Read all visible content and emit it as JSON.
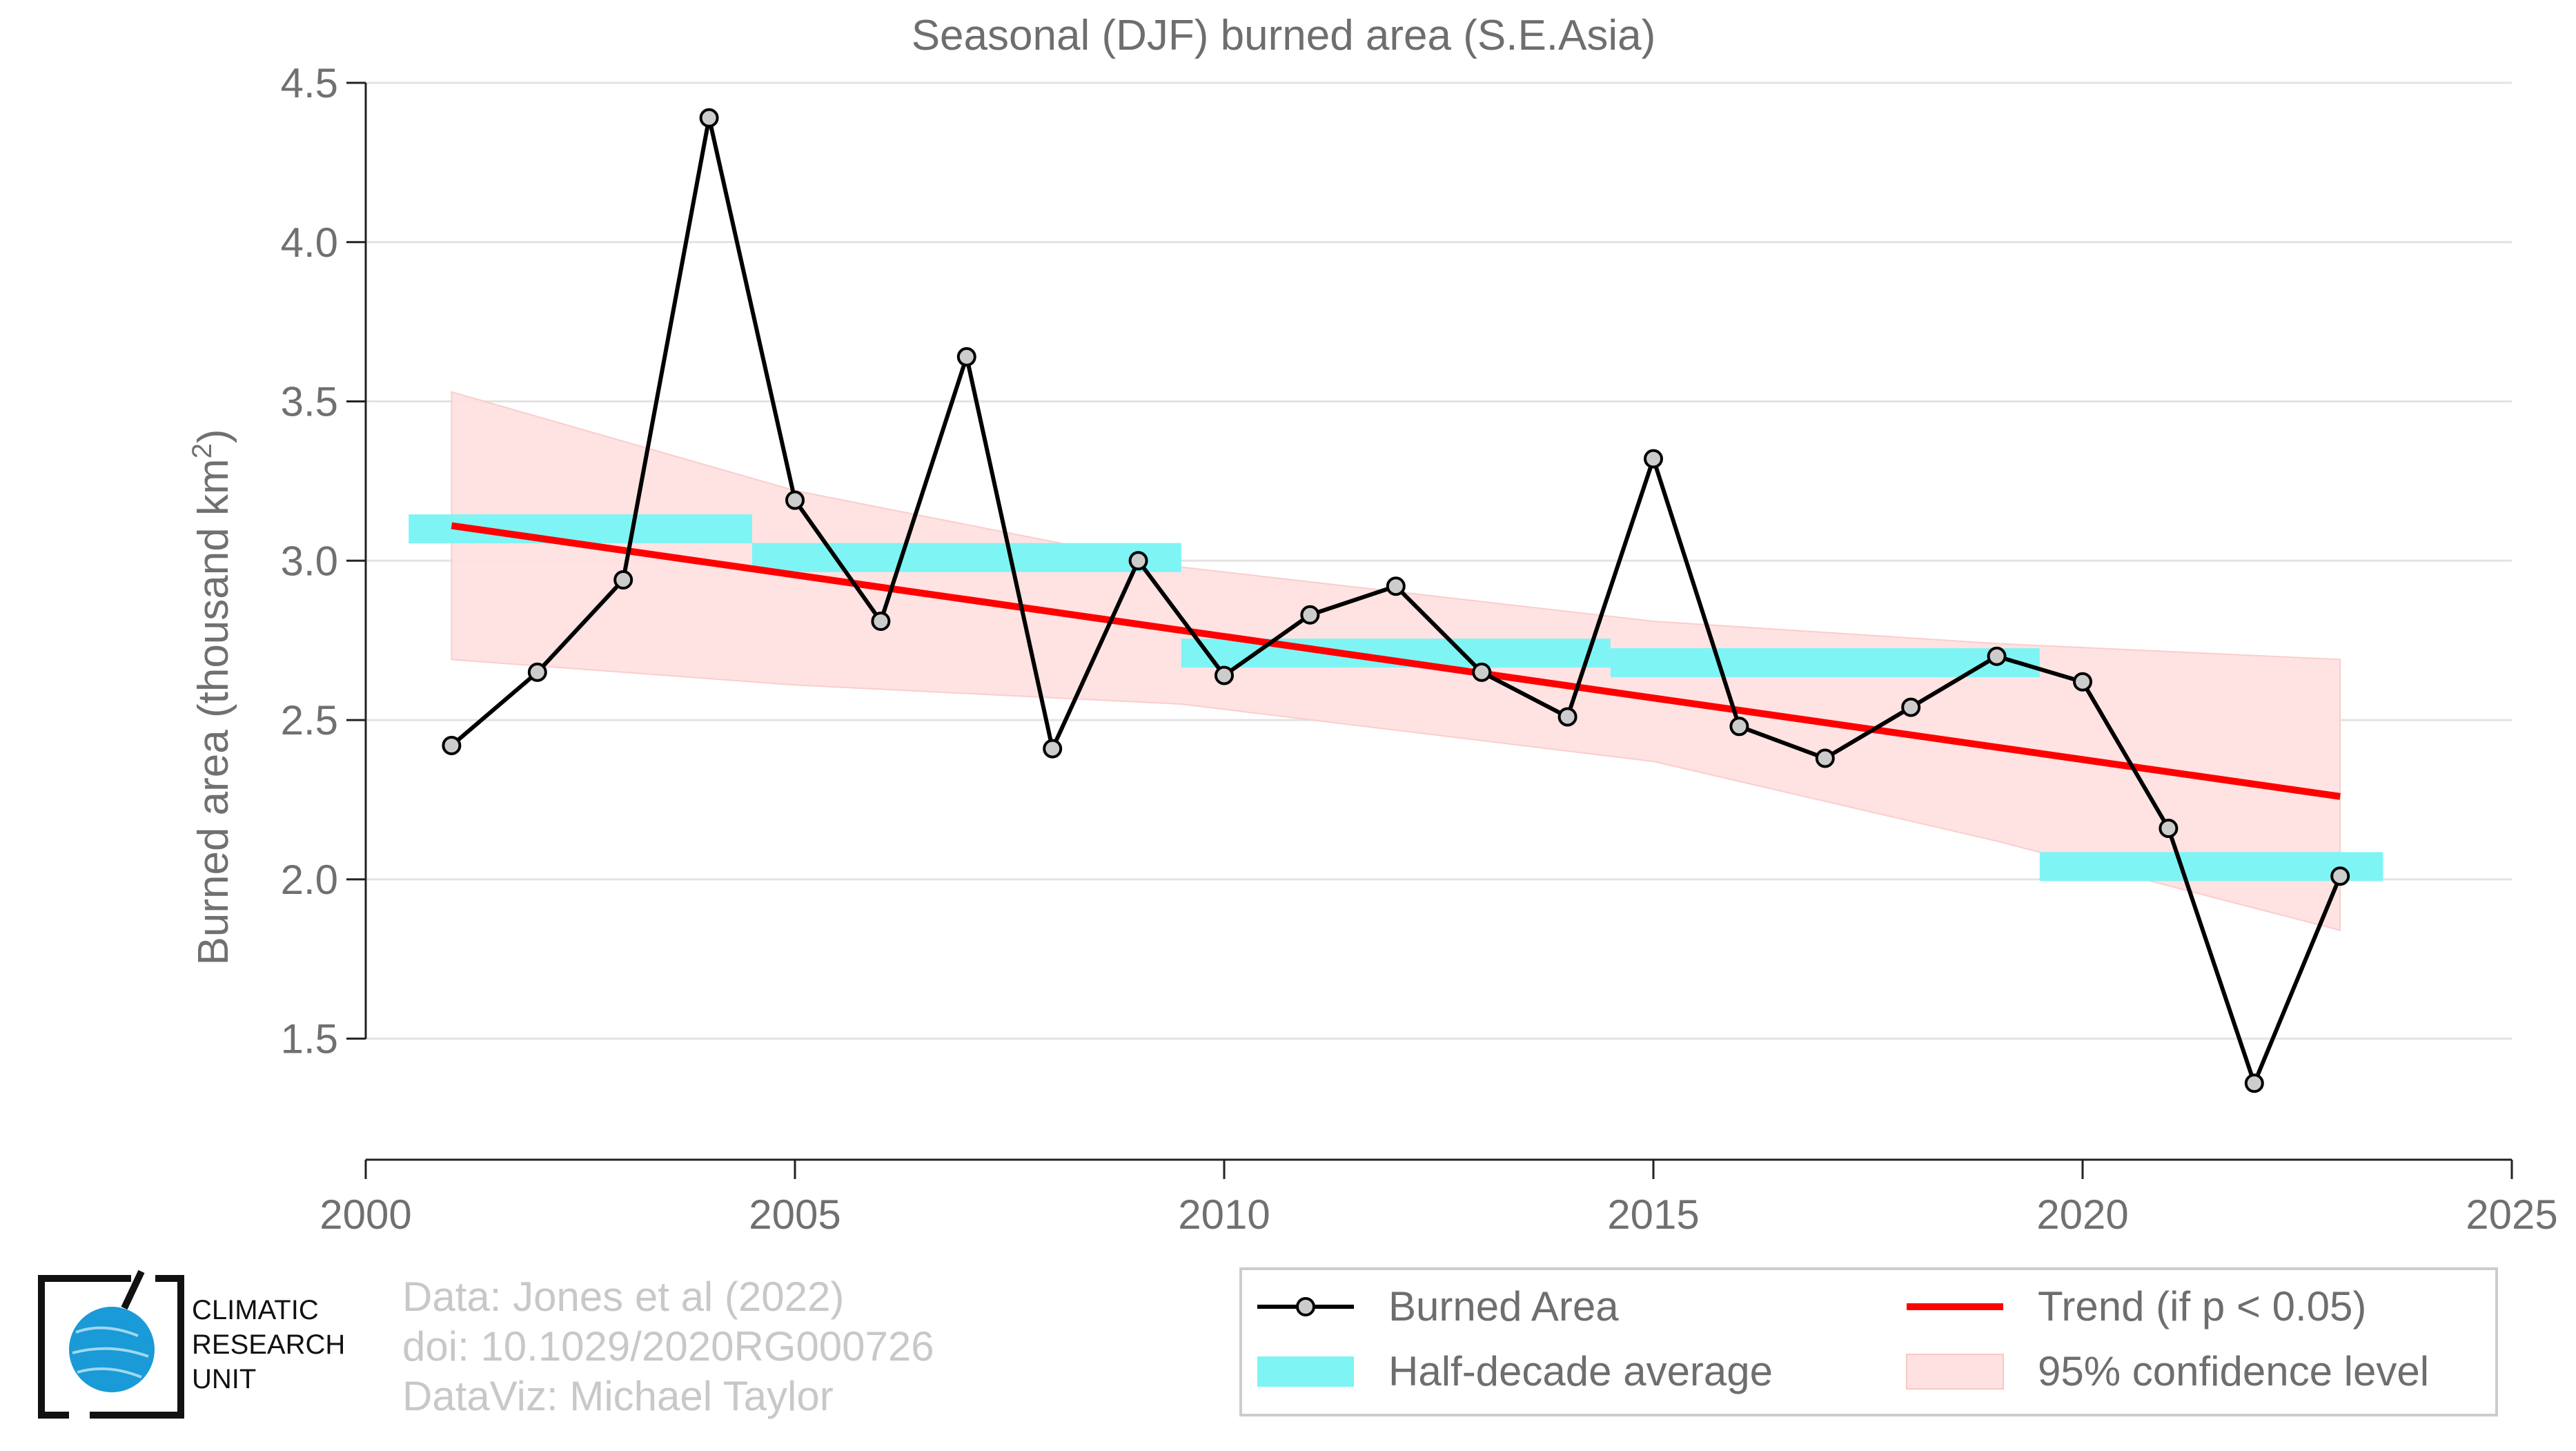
{
  "chart_data": {
    "type": "line",
    "title": "Seasonal (DJF) burned area (S.E.Asia)",
    "xlabel": "",
    "ylabel": "Burned area (thousand km",
    "ylabel_sup": "2",
    "ylabel_end": ")",
    "xlim": [
      2000,
      2025
    ],
    "ylim": [
      1.12,
      4.5
    ],
    "x_ticks": [
      2000,
      2005,
      2010,
      2015,
      2020,
      2025
    ],
    "y_ticks": [
      1.5,
      2.0,
      2.5,
      3.0,
      3.5,
      4.0,
      4.5
    ],
    "y_tick_labels": [
      "1.5",
      "2.0",
      "2.5",
      "3.0",
      "3.5",
      "4.0",
      "4.5"
    ],
    "grid": "horizontal",
    "series": [
      {
        "name": "Burned Area",
        "x": [
          2001,
          2002,
          2003,
          2004,
          2005,
          2006,
          2007,
          2008,
          2009,
          2010,
          2011,
          2012,
          2013,
          2014,
          2015,
          2016,
          2017,
          2018,
          2019,
          2020,
          2021,
          2022,
          2023
        ],
        "values": [
          2.42,
          2.65,
          2.94,
          4.39,
          3.19,
          2.81,
          3.64,
          2.41,
          3.0,
          2.64,
          2.83,
          2.92,
          2.65,
          2.51,
          3.32,
          2.48,
          2.38,
          2.54,
          2.7,
          2.62,
          2.16,
          1.36,
          2.01
        ],
        "color": "#000000",
        "marker_fill": "#cccccc"
      },
      {
        "name": "Half-decade average",
        "color": "#7ff4f4",
        "segments": [
          {
            "x0": 2000.5,
            "x1": 2004.5,
            "value": 3.1
          },
          {
            "x0": 2004.5,
            "x1": 2009.5,
            "value": 3.01
          },
          {
            "x0": 2009.5,
            "x1": 2014.5,
            "value": 2.71
          },
          {
            "x0": 2014.5,
            "x1": 2019.5,
            "value": 2.68
          },
          {
            "x0": 2019.5,
            "x1": 2023.5,
            "value": 2.04
          }
        ]
      },
      {
        "name": "Trend (if p < 0.05)",
        "color": "#ff0000",
        "x": [
          2001,
          2023
        ],
        "values": [
          3.11,
          2.26
        ]
      },
      {
        "name": "95% confidence level",
        "color": "#ffe1e1",
        "x": [
          2001,
          2005,
          2009.5,
          2015,
          2019,
          2023
        ],
        "upper": [
          3.53,
          3.22,
          2.98,
          2.81,
          2.74,
          2.69
        ],
        "lower": [
          2.69,
          2.61,
          2.55,
          2.37,
          2.12,
          1.84
        ]
      }
    ],
    "legend": {
      "placement": "bottom-right",
      "entries": [
        "Burned Area",
        "Trend (if p < 0.05)",
        "Half-decade average",
        "95% confidence level"
      ]
    }
  },
  "credits": {
    "line1": "Data: Jones et al (2022)",
    "line2": "doi: 10.1029/2020RG000726",
    "line3": "DataViz: Michael Taylor"
  },
  "org": {
    "line1": "CLIMATIC",
    "line2": "RESEARCH",
    "line3": "UNIT",
    "logo_color": "#1a9ad6"
  }
}
